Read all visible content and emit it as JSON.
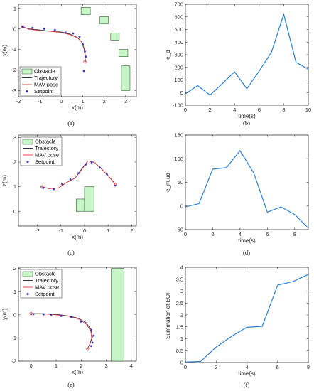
{
  "colors": {
    "obstacle_fill": "#c8f5c8",
    "obstacle_edge": "#2e5a2e",
    "trajectory": "#1a1a40",
    "mav_pose": "#e03030",
    "setpoint": "#2a2ac8",
    "line": "#2a7fd0",
    "axis": "#262626",
    "grid": "#e0e0e0"
  },
  "chart_data": [
    {
      "type": "scatter",
      "panel_label": "(a)",
      "xlabel": "x(m)",
      "ylabel": "y(m)",
      "xlim": [
        -2,
        3.5
      ],
      "ylim": [
        -3.3,
        1.2
      ],
      "xticks": [
        -2,
        -1,
        0,
        1,
        2,
        3
      ],
      "yticks": [
        -3,
        -2,
        -1,
        0,
        1
      ],
      "grid": false,
      "legend_position": "bottom-left",
      "legend": [
        "Obstacle",
        "Trajectory",
        "MAV pose",
        "Setpoint"
      ],
      "obstacles": [
        {
          "x0": 0.92,
          "x1": 1.35,
          "y0": 0.7,
          "y1": 1.05
        },
        {
          "x0": 1.8,
          "x1": 2.2,
          "y0": 0.25,
          "y1": 0.6
        },
        {
          "x0": 2.3,
          "x1": 2.7,
          "y0": -0.55,
          "y1": -0.2
        },
        {
          "x0": 2.68,
          "x1": 3.1,
          "y0": -1.35,
          "y1": -1.0
        },
        {
          "x0": 2.8,
          "x1": 3.2,
          "y0": -3.0,
          "y1": -1.8
        }
      ],
      "trajectory": [
        [
          -1.85,
          0.12
        ],
        [
          -1.5,
          0.0
        ],
        [
          -1.0,
          -0.05
        ],
        [
          -0.5,
          -0.12
        ],
        [
          0.0,
          -0.15
        ],
        [
          0.4,
          -0.25
        ],
        [
          0.75,
          -0.42
        ],
        [
          0.95,
          -0.65
        ],
        [
          1.05,
          -0.95
        ],
        [
          1.1,
          -1.25
        ],
        [
          1.12,
          -1.6
        ]
      ],
      "mav_pose": [
        [
          -1.8,
          0.1
        ],
        [
          -1.5,
          -0.02
        ],
        [
          -1.0,
          -0.08
        ],
        [
          -0.5,
          -0.12
        ],
        [
          0.0,
          -0.18
        ],
        [
          0.42,
          -0.28
        ],
        [
          0.78,
          -0.45
        ],
        [
          0.98,
          -0.68
        ],
        [
          1.08,
          -1.0
        ],
        [
          1.12,
          -1.3
        ],
        [
          1.1,
          -1.6
        ]
      ],
      "setpoints": [
        [
          -1.8,
          0.1
        ],
        [
          -1.35,
          0.05
        ],
        [
          -0.8,
          0.0
        ],
        [
          -0.3,
          -0.05
        ],
        [
          0.2,
          -0.18
        ],
        [
          0.55,
          -0.22
        ],
        [
          0.85,
          -0.38
        ],
        [
          1.0,
          -0.75
        ],
        [
          1.1,
          -1.1
        ],
        [
          1.15,
          -1.35
        ],
        [
          1.05,
          -2.05
        ]
      ]
    },
    {
      "type": "line",
      "panel_label": "(b)",
      "xlabel": "time(s)",
      "ylabel": "e_d",
      "xlim": [
        0,
        10
      ],
      "ylim": [
        -100,
        700
      ],
      "xticks": [
        0,
        2,
        4,
        6,
        8,
        10
      ],
      "yticks": [
        -100,
        0,
        100,
        200,
        300,
        400,
        500,
        600,
        700
      ],
      "grid": false,
      "x": [
        0,
        1,
        2,
        3,
        4,
        5,
        6,
        7,
        8,
        9,
        10
      ],
      "y": [
        -10,
        55,
        -20,
        70,
        165,
        30,
        170,
        320,
        620,
        240,
        185
      ]
    },
    {
      "type": "scatter",
      "panel_label": "(c)",
      "xlabel": "x(m)",
      "ylabel": "z(m)",
      "xlim": [
        -2.8,
        2.2
      ],
      "ylim": [
        -0.6,
        3.1
      ],
      "xticks": [
        -2,
        -1,
        0,
        1,
        2
      ],
      "yticks": [
        0,
        1,
        2,
        3
      ],
      "grid": false,
      "legend_position": "top-left",
      "legend": [
        "Obstacle",
        "Trajectory",
        "MAV pose",
        "Setpoint"
      ],
      "obstacles": [
        {
          "x0": -0.35,
          "x1": 0.0,
          "y0": 0.0,
          "y1": 0.5
        },
        {
          "x0": 0.0,
          "x1": 0.4,
          "y0": 0.0,
          "y1": 1.0
        }
      ],
      "trajectory": [
        [
          -1.85,
          1.0
        ],
        [
          -1.5,
          0.92
        ],
        [
          -1.1,
          0.95
        ],
        [
          -0.8,
          1.15
        ],
        [
          -0.4,
          1.35
        ],
        [
          -0.1,
          1.75
        ],
        [
          0.15,
          2.05
        ],
        [
          0.4,
          2.0
        ],
        [
          0.7,
          1.75
        ],
        [
          1.0,
          1.45
        ],
        [
          1.3,
          1.12
        ]
      ],
      "mav_pose": [
        [
          -1.8,
          1.0
        ],
        [
          -1.5,
          0.92
        ],
        [
          -1.1,
          0.95
        ],
        [
          -0.8,
          1.15
        ],
        [
          -0.4,
          1.35
        ],
        [
          -0.1,
          1.72
        ],
        [
          0.15,
          2.05
        ],
        [
          0.42,
          1.98
        ],
        [
          0.72,
          1.72
        ],
        [
          1.02,
          1.42
        ],
        [
          1.3,
          1.1
        ]
      ],
      "setpoints": [
        [
          -1.75,
          0.95
        ],
        [
          -1.3,
          0.9
        ],
        [
          -0.95,
          1.1
        ],
        [
          -0.6,
          1.3
        ],
        [
          -0.25,
          1.55
        ],
        [
          0.05,
          1.9
        ],
        [
          0.3,
          1.98
        ],
        [
          0.65,
          1.78
        ],
        [
          0.95,
          1.5
        ],
        [
          1.3,
          1.05
        ]
      ]
    },
    {
      "type": "line",
      "panel_label": "(d)",
      "xlabel": "time(s)",
      "ylabel": "e_m,ud",
      "xlim": [
        0,
        9
      ],
      "ylim": [
        -50,
        150
      ],
      "xticks": [
        0,
        2,
        4,
        6,
        8
      ],
      "yticks": [
        -50,
        0,
        50,
        100,
        150
      ],
      "grid": false,
      "x": [
        0,
        1,
        2,
        3,
        4,
        5,
        6,
        7,
        8,
        9
      ],
      "y": [
        -2,
        5,
        78,
        81,
        117,
        70,
        -13,
        -2,
        -18,
        -47
      ]
    },
    {
      "type": "scatter",
      "panel_label": "(e)",
      "xlabel": "x(m)",
      "ylabel": "y(m)",
      "xlim": [
        -0.5,
        4.2
      ],
      "ylim": [
        -2.0,
        2.05
      ],
      "xticks": [
        0,
        1,
        2,
        3,
        4
      ],
      "yticks": [
        -2,
        -1,
        0,
        1,
        2
      ],
      "grid": false,
      "legend_position": "top-left",
      "legend": [
        "Obstacle",
        "Trajectory",
        "MAV pose",
        "Setpoint"
      ],
      "obstacles": [
        {
          "x0": 3.2,
          "x1": 3.7,
          "y0": -2.0,
          "y1": 2.0
        }
      ],
      "trajectory": [
        [
          0.0,
          0.05
        ],
        [
          0.5,
          0.05
        ],
        [
          1.0,
          0.02
        ],
        [
          1.5,
          -0.05
        ],
        [
          1.9,
          -0.15
        ],
        [
          2.2,
          -0.35
        ],
        [
          2.4,
          -0.65
        ],
        [
          2.45,
          -0.95
        ],
        [
          2.35,
          -1.25
        ],
        [
          2.25,
          -1.45
        ]
      ],
      "mav_pose": [
        [
          0.0,
          0.05
        ],
        [
          0.5,
          0.04
        ],
        [
          1.0,
          0.0
        ],
        [
          1.5,
          -0.06
        ],
        [
          1.9,
          -0.18
        ],
        [
          2.2,
          -0.4
        ],
        [
          2.38,
          -0.7
        ],
        [
          2.42,
          -1.0
        ],
        [
          2.33,
          -1.28
        ],
        [
          2.25,
          -1.48
        ]
      ],
      "setpoints": [
        [
          0.1,
          0.03
        ],
        [
          0.5,
          0.02
        ],
        [
          0.8,
          0.0
        ],
        [
          1.2,
          -0.05
        ],
        [
          1.6,
          -0.1
        ],
        [
          2.0,
          -0.3
        ],
        [
          2.4,
          -0.65
        ],
        [
          2.5,
          -0.9
        ],
        [
          2.45,
          -1.2
        ],
        [
          2.4,
          -1.35
        ]
      ]
    },
    {
      "type": "line",
      "panel_label": "(f)",
      "xlabel": "time(s)",
      "ylabel": "Summation of EOF",
      "xlim": [
        0,
        8
      ],
      "ylim": [
        0,
        4
      ],
      "xticks": [
        0,
        2,
        4,
        6,
        8
      ],
      "yticks": [
        0,
        0.5,
        1,
        1.5,
        2,
        2.5,
        3,
        3.5,
        4
      ],
      "grid": false,
      "x": [
        0,
        1,
        2,
        3,
        4,
        5,
        6,
        7,
        8
      ],
      "y": [
        0.02,
        0.05,
        0.65,
        1.1,
        1.48,
        1.52,
        3.25,
        3.4,
        3.7
      ]
    }
  ]
}
